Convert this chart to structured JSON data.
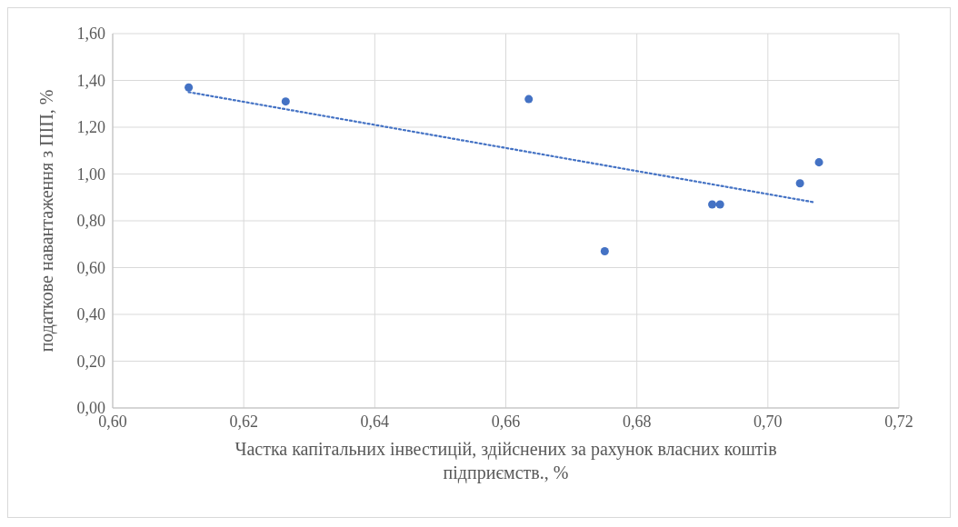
{
  "chart_data": {
    "type": "scatter",
    "xlabel": "Частка капітальних інвестицій, здійснених за рахунок власних коштів підприємств., %",
    "ylabel": "податкове навантаження з ПІП, %",
    "xlim": [
      0.6,
      0.72
    ],
    "xticks": [
      {
        "value": 0.6,
        "label": "0,60"
      },
      {
        "value": 0.62,
        "label": "0,62"
      },
      {
        "value": 0.64,
        "label": "0,64"
      },
      {
        "value": 0.66,
        "label": "0,66"
      },
      {
        "value": 0.68,
        "label": "0,68"
      },
      {
        "value": 0.7,
        "label": "0,70"
      },
      {
        "value": 0.72,
        "label": "0,72"
      }
    ],
    "ylim": [
      0,
      1.6
    ],
    "yticks": [
      {
        "value": 0,
        "label": "0,00"
      },
      {
        "value": 0.2,
        "label": "0,20"
      },
      {
        "value": 0.4,
        "label": "0,40"
      },
      {
        "value": 0.6,
        "label": "0,60"
      },
      {
        "value": 0.8,
        "label": "0,80"
      },
      {
        "value": 1.0,
        "label": "1,00"
      },
      {
        "value": 1.2,
        "label": "1,20"
      },
      {
        "value": 1.4,
        "label": "1,40"
      },
      {
        "value": 1.6,
        "label": "1,60"
      }
    ],
    "grid": true,
    "series": [
      {
        "type": "scatter",
        "color": "#4472c4",
        "marker": "circle",
        "x": [
          0.6116,
          0.6264,
          0.6635,
          0.6751,
          0.6915,
          0.6927,
          0.7049,
          0.7078
        ],
        "values": [
          1.37,
          1.31,
          1.32,
          0.67,
          0.87,
          0.87,
          0.96,
          1.05
        ]
      },
      {
        "type": "line",
        "color": "#4472c4",
        "marker": "none",
        "line_style": "dotted",
        "x": [
          0.6116,
          0.7069
        ],
        "values": [
          1.35,
          0.88
        ]
      }
    ]
  }
}
